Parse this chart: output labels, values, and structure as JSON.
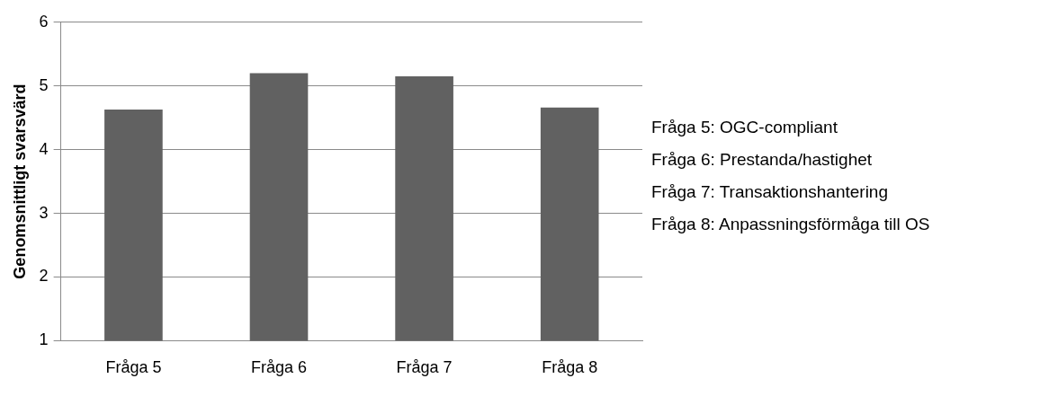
{
  "chart_data": {
    "type": "bar",
    "ylabel": "Genomsnittligt svarsvärd",
    "categories": [
      "Fråga 5",
      "Fråga 6",
      "Fråga 7",
      "Fråga 8"
    ],
    "values": [
      4.63,
      5.2,
      5.15,
      4.66
    ],
    "color": "#616161",
    "ylim": [
      1,
      6
    ],
    "yticks": [
      1,
      2,
      3,
      4,
      5,
      6
    ],
    "grid": "y",
    "legend": false,
    "annotations": [
      "Fråga 5: OGC-compliant",
      "Fråga 6: Prestanda/hastighet",
      "Fråga 7: Transaktionshantering",
      "Fråga 8: Anpassningsförmåga till OS"
    ]
  }
}
